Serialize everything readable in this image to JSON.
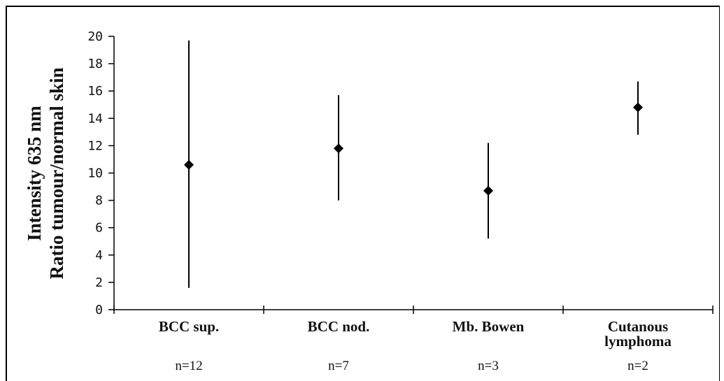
{
  "chart_data": {
    "type": "scatter",
    "title": "",
    "ylabel_lines": [
      "Intensity 635 nm",
      "Ratio tumour/normal skin"
    ],
    "xlabel": "",
    "ylim": [
      0,
      20
    ],
    "yticks": [
      0,
      2,
      4,
      6,
      8,
      10,
      12,
      14,
      16,
      18,
      20
    ],
    "grid": false,
    "categories": [
      {
        "label_lines": [
          "BCC sup."
        ],
        "n": "n=12"
      },
      {
        "label_lines": [
          "BCC nod."
        ],
        "n": "n=7"
      },
      {
        "label_lines": [
          "Mb. Bowen"
        ],
        "n": "n=3"
      },
      {
        "label_lines": [
          "Cutanous",
          "lymphoma"
        ],
        "n": "n=2"
      }
    ],
    "series": [
      {
        "values": [
          10.6,
          11.8,
          8.7,
          14.8
        ],
        "error_low": [
          1.6,
          8.0,
          5.2,
          12.8
        ],
        "error_high": [
          19.7,
          15.7,
          12.2,
          16.7
        ]
      }
    ]
  }
}
